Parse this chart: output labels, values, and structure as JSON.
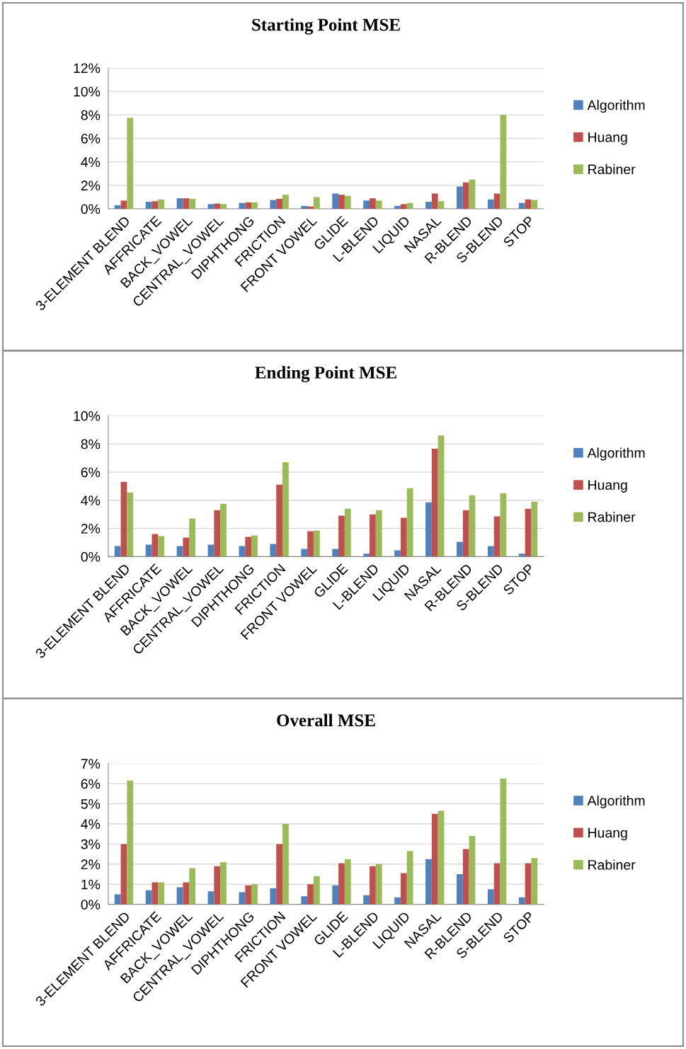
{
  "chart_data": [
    {
      "type": "bar",
      "title": "Starting Point MSE",
      "categories": [
        "3-ELEMENT BLEND",
        "AFFRICATE",
        "BACK_VOWEL",
        "CENTRAL_VOWEL",
        "DIPHTHONG",
        "FRICTION",
        "FRONT VOWEL",
        "GLIDE",
        "L-BLEND",
        "LIQUID",
        "NASAL",
        "R-BLEND",
        "S-BLEND",
        "STOP"
      ],
      "series": [
        {
          "name": "Algorithm",
          "color": "#4f81bd",
          "values": [
            0.3,
            0.6,
            0.9,
            0.4,
            0.5,
            0.75,
            0.25,
            1.3,
            0.7,
            0.25,
            0.6,
            1.9,
            0.8,
            0.5
          ]
        },
        {
          "name": "Huang",
          "color": "#c0504d",
          "values": [
            0.7,
            0.65,
            0.9,
            0.45,
            0.55,
            0.85,
            0.2,
            1.2,
            0.9,
            0.4,
            1.3,
            2.25,
            1.3,
            0.8
          ]
        },
        {
          "name": "Rabiner",
          "color": "#9bbb59",
          "values": [
            7.75,
            0.8,
            0.85,
            0.4,
            0.55,
            1.2,
            1.0,
            1.1,
            0.7,
            0.5,
            0.65,
            2.5,
            8.0,
            0.75
          ]
        }
      ],
      "ylim": [
        0,
        12
      ],
      "yticks": [
        {
          "value": 0,
          "label": "0%"
        },
        {
          "value": 2,
          "label": "2%"
        },
        {
          "value": 4,
          "label": "4%"
        },
        {
          "value": 6,
          "label": "6%"
        },
        {
          "value": 8,
          "label": "8%"
        },
        {
          "value": 10,
          "label": "10%"
        },
        {
          "value": 12,
          "label": "12%"
        }
      ],
      "grid": "y",
      "legend": "right"
    },
    {
      "type": "bar",
      "title": "Ending Point MSE",
      "categories": [
        "3-ELEMENT BLEND",
        "AFFRICATE",
        "BACK_VOWEL",
        "CENTRAL_VOWEL",
        "DIPHTHONG",
        "FRICTION",
        "FRONT VOWEL",
        "GLIDE",
        "L-BLEND",
        "LIQUID",
        "NASAL",
        "R-BLEND",
        "S-BLEND",
        "STOP"
      ],
      "series": [
        {
          "name": "Algorithm",
          "color": "#4f81bd",
          "values": [
            0.75,
            0.85,
            0.75,
            0.85,
            0.75,
            0.9,
            0.55,
            0.55,
            0.2,
            0.45,
            3.85,
            1.05,
            0.75,
            0.2
          ]
        },
        {
          "name": "Huang",
          "color": "#c0504d",
          "values": [
            5.3,
            1.6,
            1.35,
            3.3,
            1.4,
            5.1,
            1.8,
            2.9,
            3.0,
            2.75,
            7.65,
            3.3,
            2.85,
            3.4
          ]
        },
        {
          "name": "Rabiner",
          "color": "#9bbb59",
          "values": [
            4.55,
            1.45,
            2.7,
            3.75,
            1.5,
            6.7,
            1.85,
            3.4,
            3.3,
            4.85,
            8.6,
            4.35,
            4.5,
            3.9
          ]
        }
      ],
      "ylim": [
        0,
        10
      ],
      "yticks": [
        {
          "value": 0,
          "label": "0%"
        },
        {
          "value": 2,
          "label": "2%"
        },
        {
          "value": 4,
          "label": "4%"
        },
        {
          "value": 6,
          "label": "6%"
        },
        {
          "value": 8,
          "label": "8%"
        },
        {
          "value": 10,
          "label": "10%"
        }
      ],
      "grid": "y",
      "legend": "right"
    },
    {
      "type": "bar",
      "title": "Overall MSE",
      "categories": [
        "3-ELEMENT BLEND",
        "AFFRICATE",
        "BACK_VOWEL",
        "CENTRAL_VOWEL",
        "DIPHTHONG",
        "FRICTION",
        "FRONT VOWEL",
        "GLIDE",
        "L-BLEND",
        "LIQUID",
        "NASAL",
        "R-BLEND",
        "S-BLEND",
        "STOP"
      ],
      "series": [
        {
          "name": "Algorithm",
          "color": "#4f81bd",
          "values": [
            0.5,
            0.7,
            0.85,
            0.65,
            0.6,
            0.8,
            0.4,
            0.95,
            0.45,
            0.35,
            2.25,
            1.5,
            0.75,
            0.35
          ]
        },
        {
          "name": "Huang",
          "color": "#c0504d",
          "values": [
            3.0,
            1.1,
            1.1,
            1.9,
            0.95,
            3.0,
            1.0,
            2.05,
            1.9,
            1.55,
            4.5,
            2.75,
            2.05,
            2.05
          ]
        },
        {
          "name": "Rabiner",
          "color": "#9bbb59",
          "values": [
            6.15,
            1.1,
            1.8,
            2.1,
            1.0,
            4.0,
            1.4,
            2.25,
            2.0,
            2.65,
            4.65,
            3.4,
            6.25,
            2.3
          ]
        }
      ],
      "ylim": [
        0,
        7
      ],
      "yticks": [
        {
          "value": 0,
          "label": "0%"
        },
        {
          "value": 1,
          "label": "1%"
        },
        {
          "value": 2,
          "label": "2%"
        },
        {
          "value": 3,
          "label": "3%"
        },
        {
          "value": 4,
          "label": "4%"
        },
        {
          "value": 5,
          "label": "5%"
        },
        {
          "value": 6,
          "label": "6%"
        },
        {
          "value": 7,
          "label": "7%"
        }
      ],
      "grid": "y",
      "legend": "right"
    }
  ]
}
